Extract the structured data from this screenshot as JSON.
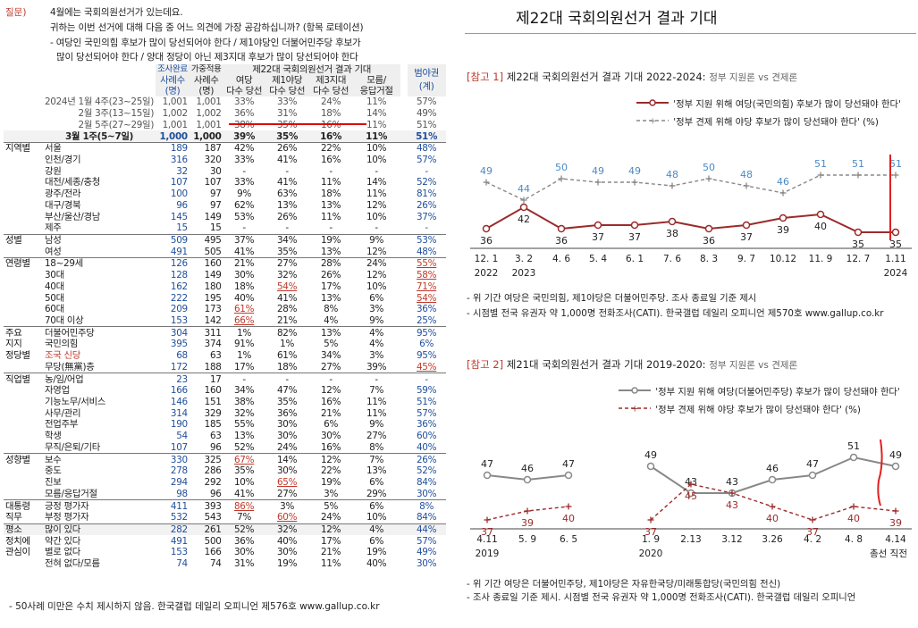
{
  "question": {
    "label": "질문)",
    "lines": [
      "4월에는 국회의원선거가 있는데요.",
      "귀하는 이번 선거에 대해 다음 중 어느 의견에 가장 공감하십니까? (항목 로테이션)",
      "- 여당인 국민의힘 후보가 많이 당선되어야 한다 / 제1야당인 더불어민주당 후보가",
      "많이 당선되어야 한다 / 양대 정당이 아닌 제3지대 후보가 많이 당선되어야 한다"
    ]
  },
  "table": {
    "headers": {
      "sample": "조사완료",
      "weighted": "가중적용",
      "group_title": "제22대 국회의원선거 결과 기대",
      "case_a": "사례수",
      "case_b": "사례수",
      "unit_a": "(명)",
      "unit_b": "(명)",
      "c1a": "여당",
      "c1b": "다수 당선",
      "c2a": "제1야당",
      "c2b": "다수 당선",
      "c3a": "제3지대",
      "c3b": "다수 당선",
      "c4a": "모름/",
      "c4b": "응답거절",
      "range_a": "범야권",
      "range_b": "(계)"
    },
    "rows": [
      {
        "g": "",
        "s": "2024년 1월 4주(23~25일)",
        "n": "1,001",
        "w": "1,001",
        "a": "33%",
        "b": "33%",
        "c": "24%",
        "d": "11%",
        "e": "57%"
      },
      {
        "g": "",
        "s": "2월 3주(13~15일)",
        "n": "1,002",
        "w": "1,002",
        "a": "36%",
        "b": "31%",
        "c": "18%",
        "d": "14%",
        "e": "49%"
      },
      {
        "g": "",
        "s": "2월 5주(27~29일)",
        "n": "1,001",
        "w": "1,001",
        "a": "38%",
        "b": "35%",
        "c": "16%",
        "d": "11%",
        "e": "51%"
      },
      {
        "g": "",
        "s": "3월 1주(5~7일)",
        "n": "1,000",
        "w": "1,000",
        "a": "39%",
        "b": "35%",
        "c": "16%",
        "d": "11%",
        "e": "51%"
      },
      {
        "g": "지역별",
        "s": "서울",
        "n": "189",
        "w": "187",
        "a": "42%",
        "b": "26%",
        "c": "22%",
        "d": "10%",
        "e": "48%"
      },
      {
        "g": "",
        "s": "인천/경기",
        "n": "316",
        "w": "320",
        "a": "33%",
        "b": "41%",
        "c": "16%",
        "d": "10%",
        "e": "57%"
      },
      {
        "g": "",
        "s": "강원",
        "n": "32",
        "w": "30",
        "a": "-",
        "b": "-",
        "c": "-",
        "d": "-",
        "e": "-"
      },
      {
        "g": "",
        "s": "대전/세종/충청",
        "n": "107",
        "w": "107",
        "a": "33%",
        "b": "41%",
        "c": "11%",
        "d": "14%",
        "e": "52%"
      },
      {
        "g": "",
        "s": "광주/전라",
        "n": "100",
        "w": "97",
        "a": "9%",
        "b": "63%",
        "c": "18%",
        "d": "11%",
        "e": "81%"
      },
      {
        "g": "",
        "s": "대구/경북",
        "n": "96",
        "w": "97",
        "a": "62%",
        "b": "13%",
        "c": "13%",
        "d": "12%",
        "e": "26%"
      },
      {
        "g": "",
        "s": "부산/울산/경남",
        "n": "145",
        "w": "149",
        "a": "53%",
        "b": "26%",
        "c": "11%",
        "d": "10%",
        "e": "37%"
      },
      {
        "g": "",
        "s": "제주",
        "n": "15",
        "w": "15",
        "a": "-",
        "b": "-",
        "c": "-",
        "d": "-",
        "e": "-"
      },
      {
        "g": "성별",
        "s": "남성",
        "n": "509",
        "w": "495",
        "a": "37%",
        "b": "34%",
        "c": "19%",
        "d": "9%",
        "e": "53%"
      },
      {
        "g": "",
        "s": "여성",
        "n": "491",
        "w": "505",
        "a": "41%",
        "b": "35%",
        "c": "13%",
        "d": "12%",
        "e": "48%"
      },
      {
        "g": "연령별",
        "s": "18~29세",
        "n": "126",
        "w": "160",
        "a": "21%",
        "b": "27%",
        "c": "28%",
        "d": "24%",
        "e": "55%"
      },
      {
        "g": "",
        "s": "30대",
        "n": "128",
        "w": "149",
        "a": "30%",
        "b": "32%",
        "c": "26%",
        "d": "12%",
        "e": "58%"
      },
      {
        "g": "",
        "s": "40대",
        "n": "162",
        "w": "180",
        "a": "18%",
        "b": "54%",
        "c": "17%",
        "d": "10%",
        "e": "71%"
      },
      {
        "g": "",
        "s": "50대",
        "n": "222",
        "w": "195",
        "a": "40%",
        "b": "41%",
        "c": "13%",
        "d": "6%",
        "e": "54%"
      },
      {
        "g": "",
        "s": "60대",
        "n": "209",
        "w": "173",
        "a": "61%",
        "b": "28%",
        "c": "8%",
        "d": "3%",
        "e": "36%"
      },
      {
        "g": "",
        "s": "70대 이상",
        "n": "153",
        "w": "142",
        "a": "66%",
        "b": "21%",
        "c": "4%",
        "d": "9%",
        "e": "25%"
      },
      {
        "g": "주요",
        "s": "더불어민주당",
        "n": "304",
        "w": "311",
        "a": "1%",
        "b": "82%",
        "c": "13%",
        "d": "4%",
        "e": "95%"
      },
      {
        "g": "지지",
        "s": "국민의힘",
        "n": "395",
        "w": "374",
        "a": "91%",
        "b": "1%",
        "c": "5%",
        "d": "4%",
        "e": "6%"
      },
      {
        "g": "정당별",
        "s": "조국 신당",
        "n": "68",
        "w": "63",
        "a": "1%",
        "b": "61%",
        "c": "34%",
        "d": "3%",
        "e": "95%"
      },
      {
        "g": "",
        "s": "무당(無黨)층",
        "n": "172",
        "w": "188",
        "a": "17%",
        "b": "18%",
        "c": "27%",
        "d": "39%",
        "e": "45%"
      },
      {
        "g": "직업별",
        "s": "농/임/어업",
        "n": "23",
        "w": "17",
        "a": "-",
        "b": "-",
        "c": "-",
        "d": "-",
        "e": "-"
      },
      {
        "g": "",
        "s": "자영업",
        "n": "166",
        "w": "160",
        "a": "34%",
        "b": "47%",
        "c": "12%",
        "d": "7%",
        "e": "59%"
      },
      {
        "g": "",
        "s": "기능노무/서비스",
        "n": "146",
        "w": "151",
        "a": "38%",
        "b": "35%",
        "c": "16%",
        "d": "11%",
        "e": "51%"
      },
      {
        "g": "",
        "s": "사무/관리",
        "n": "314",
        "w": "329",
        "a": "32%",
        "b": "36%",
        "c": "21%",
        "d": "11%",
        "e": "57%"
      },
      {
        "g": "",
        "s": "전업주부",
        "n": "190",
        "w": "185",
        "a": "55%",
        "b": "30%",
        "c": "6%",
        "d": "9%",
        "e": "36%"
      },
      {
        "g": "",
        "s": "학생",
        "n": "54",
        "w": "63",
        "a": "13%",
        "b": "30%",
        "c": "30%",
        "d": "27%",
        "e": "60%"
      },
      {
        "g": "",
        "s": "무직/은퇴/기타",
        "n": "107",
        "w": "96",
        "a": "52%",
        "b": "24%",
        "c": "16%",
        "d": "8%",
        "e": "40%"
      },
      {
        "g": "성향별",
        "s": "보수",
        "n": "330",
        "w": "325",
        "a": "67%",
        "b": "14%",
        "c": "12%",
        "d": "7%",
        "e": "26%"
      },
      {
        "g": "",
        "s": "중도",
        "n": "278",
        "w": "286",
        "a": "35%",
        "b": "30%",
        "c": "22%",
        "d": "13%",
        "e": "52%"
      },
      {
        "g": "",
        "s": "진보",
        "n": "294",
        "w": "292",
        "a": "10%",
        "b": "65%",
        "c": "19%",
        "d": "6%",
        "e": "84%"
      },
      {
        "g": "",
        "s": "모름/응답거절",
        "n": "98",
        "w": "96",
        "a": "41%",
        "b": "27%",
        "c": "3%",
        "d": "29%",
        "e": "30%"
      },
      {
        "g": "대통령",
        "s": "긍정 평가자",
        "n": "411",
        "w": "393",
        "a": "86%",
        "b": "3%",
        "c": "5%",
        "d": "6%",
        "e": "8%"
      },
      {
        "g": "직무",
        "s": "부정 평가자",
        "n": "532",
        "w": "543",
        "a": "7%",
        "b": "60%",
        "c": "24%",
        "d": "10%",
        "e": "84%"
      },
      {
        "g": "평소",
        "s": "많이 있다",
        "n": "282",
        "w": "261",
        "a": "52%",
        "b": "32%",
        "c": "12%",
        "d": "4%",
        "e": "44%"
      },
      {
        "g": "정치에",
        "s": "약간 있다",
        "n": "491",
        "w": "500",
        "a": "36%",
        "b": "40%",
        "c": "17%",
        "d": "6%",
        "e": "57%"
      },
      {
        "g": "관심이",
        "s": "별로 없다",
        "n": "153",
        "w": "166",
        "a": "30%",
        "b": "30%",
        "c": "21%",
        "d": "19%",
        "e": "49%"
      },
      {
        "g": "",
        "s": "전혀 없다/모름",
        "n": "74",
        "w": "74",
        "a": "31%",
        "b": "19%",
        "c": "11%",
        "d": "40%",
        "e": "30%"
      }
    ]
  },
  "left_footnote": "- 50사례 미만은 수치 제시하지 않음. 한국갤럽 데일리 오피니언 제576호 www.gallup.co.kr",
  "right": {
    "title": "제22대 국회의원선거 결과 기대",
    "ref1": {
      "bracket": "[참고 1]",
      "title": "제22대 국회의원선거 결과 기대 2022-2024:",
      "subtitle": "정부 지원론 vs 견제론",
      "legend_solid": "'정부 지원 위해 여당(국민의힘) 후보가 많이 당선돼야 한다'",
      "legend_dashed": "'정부 견제 위해 야당 후보가 많이 당선돼야 한다' (%)",
      "notes": [
        "- 위 기간 여당은 국민의힘, 제1야당은 더불어민주당. 조사 종료일 기준 제시",
        "- 시점별 전국 유권자 약 1,000명 전화조사(CATI). 한국갤럽 데일리 오피니언 제570호 www.gallup.co.kr"
      ]
    },
    "ref2": {
      "bracket": "[참고 2]",
      "title": "제21대 국회의원선거 결과 기대 2019-2020:",
      "subtitle": "정부 지원론 vs 견제론",
      "legend_solid": "'정부 지원 위해 여당(더불어민주당) 후보가 많이 당선돼야 한다'",
      "legend_dashed": "'정부 견제 위해 야당 후보가 많이 당선돼야 한다' (%)",
      "notes": [
        "- 위 기간 여당은 더불어민주당, 제1야당은 자유한국당/미래통합당(국민의힘 전신)",
        "- 조사 종료일 기준 제시. 시점별 전국 유권자 약 1,000명 전화조사(CATI). 한국갤럽 데일리 오피니언"
      ]
    }
  },
  "colors": {
    "ruling": "#9b2b2b",
    "opposition": "#888888",
    "accent": "#c0392b",
    "marker": "#e0201f"
  },
  "chart_data": [
    {
      "type": "line",
      "x": [
        "12. 1",
        "3. 2",
        "4. 6",
        "5. 4",
        "6. 1",
        "7. 6",
        "8. 3",
        "9. 7",
        "10.12",
        "11. 9",
        "12. 7",
        "1.11"
      ],
      "x_years": {
        "0": "2022",
        "1": "2023",
        "11": "2024"
      },
      "series": [
        {
          "name": "'정부 지원 위해 여당(국민의힘) 후보가 많이 당선돼야 한다'",
          "values": [
            36,
            42,
            36,
            37,
            37,
            38,
            36,
            37,
            39,
            40,
            35,
            35
          ]
        },
        {
          "name": "'정부 견제 위해 야당 후보가 많이 당선돼야 한다' (%)",
          "values": [
            49,
            44,
            50,
            49,
            49,
            48,
            50,
            48,
            46,
            51,
            51,
            51
          ]
        }
      ],
      "ylim": [
        30,
        55
      ]
    },
    {
      "type": "line",
      "x": [
        "4.11",
        "5. 9",
        "6. 5",
        "1. 9",
        "2.13",
        "3.12",
        "3.26",
        "4. 2",
        "4. 8",
        "4.14"
      ],
      "x_years": {
        "0": "2019",
        "3": "2020"
      },
      "x_extra": "총선 직전",
      "series": [
        {
          "name": "'정부 지원 위해 여당(더불어민주당) 후보가 많이 당선돼야 한다'",
          "values": [
            47,
            46,
            47,
            49,
            43,
            43,
            46,
            47,
            51,
            49
          ]
        },
        {
          "name": "'정부 견제 위해 야당 후보가 많이 당선돼야 한다' (%)",
          "values": [
            37,
            39,
            40,
            37,
            45,
            43,
            40,
            37,
            40,
            39
          ]
        }
      ],
      "ylim": [
        33,
        55
      ]
    }
  ]
}
